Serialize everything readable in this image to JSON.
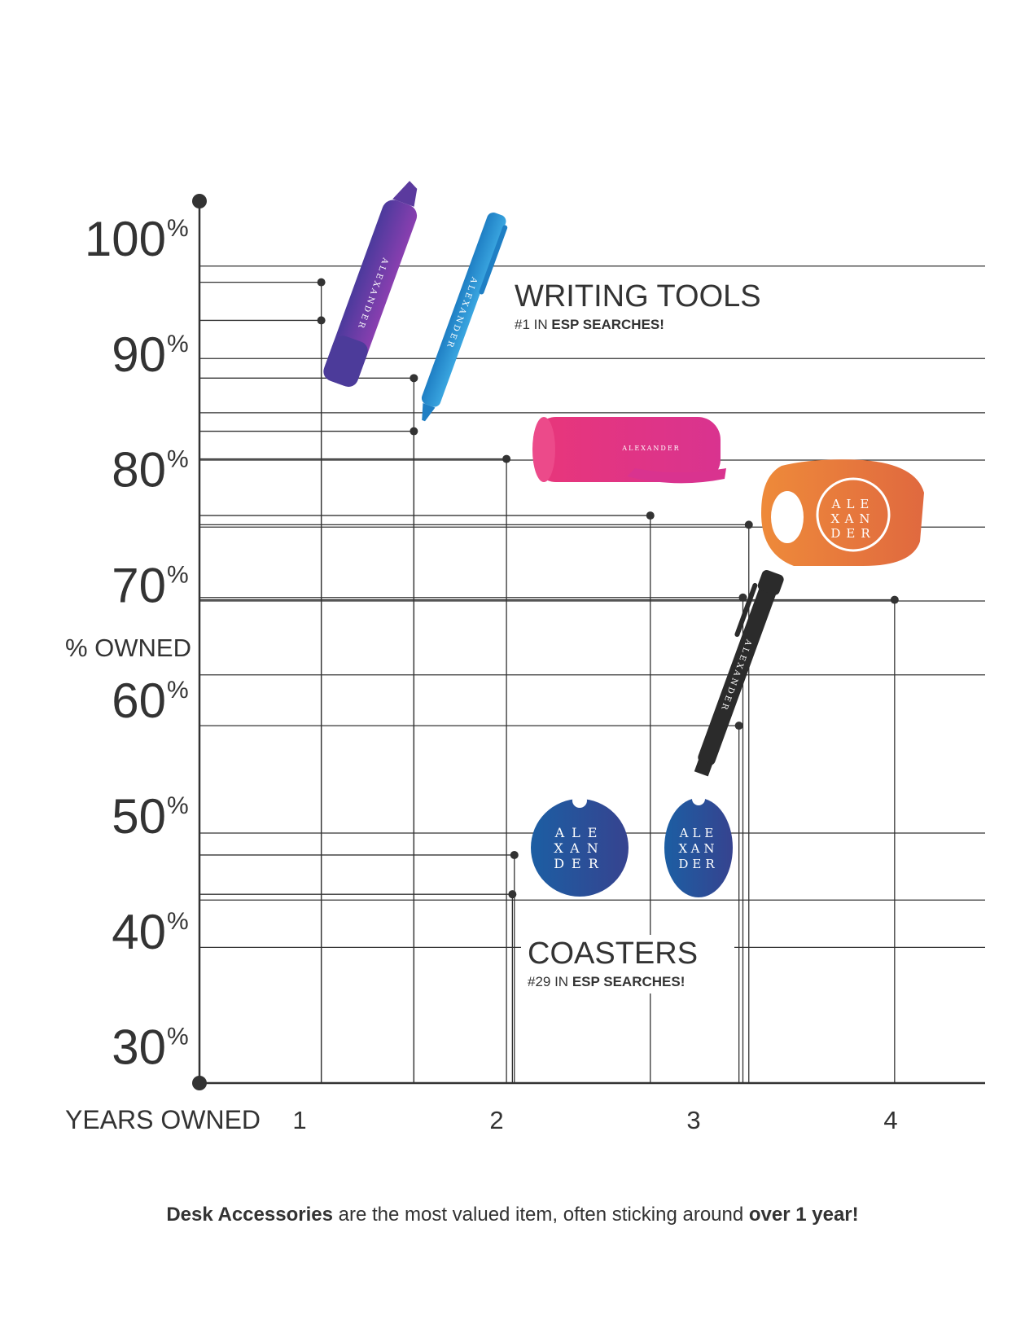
{
  "chart_data": {
    "type": "scatter",
    "title": "",
    "xlabel": "YEARS OWNED",
    "ylabel": "% OWNED",
    "xticks": [
      "1",
      "2",
      "3",
      "4"
    ],
    "yticks": [
      "100",
      "90",
      "80",
      "70",
      "60",
      "50",
      "40",
      "30"
    ],
    "ytick_suffix": "%",
    "xlim": [
      0.45,
      4.5
    ],
    "ylim": [
      27,
      105
    ],
    "grid": true,
    "points": [
      {
        "x": 1.11,
        "y": 96.5
      },
      {
        "x": 1.11,
        "y": 93.2
      },
      {
        "x": 1.58,
        "y": 88.2
      },
      {
        "x": 1.58,
        "y": 83.6
      },
      {
        "x": 2.05,
        "y": 81.2
      },
      {
        "x": 2.78,
        "y": 76.3
      },
      {
        "x": 3.28,
        "y": 75.5
      },
      {
        "x": 3.25,
        "y": 69.2
      },
      {
        "x": 4.02,
        "y": 69.0
      },
      {
        "x": 3.23,
        "y": 58.1
      },
      {
        "x": 2.09,
        "y": 46.9
      },
      {
        "x": 2.08,
        "y": 43.5
      }
    ],
    "gridlines_y": [
      97.9,
      89.9,
      85.2,
      81.1,
      75.3,
      68.9,
      62.5,
      48.8,
      43.0,
      38.9
    ],
    "annotations": [
      {
        "title": "WRITING TOOLS",
        "sub_prefix": "#1 IN ",
        "sub_bold": "ESP SEARCHES!"
      },
      {
        "title": "COASTERS",
        "sub_prefix": "#29 IN ",
        "sub_bold": "ESP SEARCHES!"
      }
    ]
  },
  "product_logo": {
    "word": "ALEXANDER",
    "stacked": [
      "ALE",
      "XAN",
      "DER"
    ]
  },
  "colors": {
    "axis": "#333333",
    "highlighter": "#6a3fa0",
    "pen_blue": "#2a8ccf",
    "flashlight": "#e0337c",
    "tape": "#ea7a3c",
    "coaster": "#234f9a",
    "black_pen": "#2b2b2b"
  },
  "caption": {
    "bold1": "Desk Accessories",
    "mid": " are the most valued item, often sticking around ",
    "bold2": "over 1 year!"
  }
}
